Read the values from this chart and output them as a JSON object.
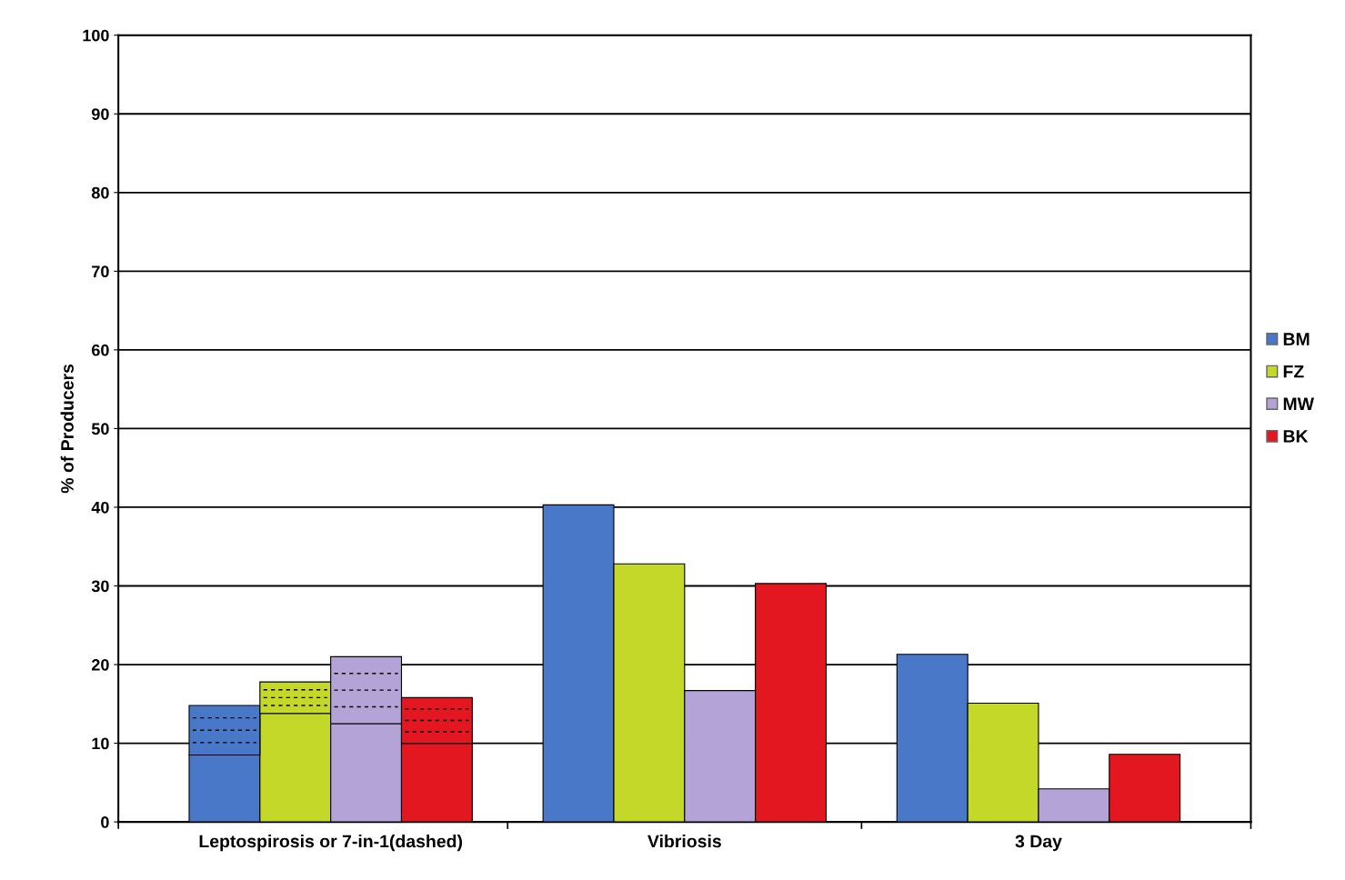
{
  "chart_data": {
    "type": "bar",
    "ylabel": "% of Producers",
    "categories": [
      null,
      null,
      null,
      null,
      null,
      null,
      null,
      null,
      null,
      null,
      null,
      null,
      null,
      null,
      null,
      null
    ],
    "annotations": [
      "Leptospirosis or 7-in-1(dashed)",
      "Vibriosis",
      "3 Day"
    ],
    "stacked": true,
    "ylim": [
      0,
      100
    ],
    "yticks": [
      0,
      10,
      20,
      30,
      40,
      50,
      60,
      70,
      80,
      90,
      100
    ],
    "grid": "y",
    "legend": "right",
    "tick_labels": "y",
    "series": [
      {
        "name": "BM",
        "color": "#4a78c8",
        "values": [
          null,
          8.5,
          null,
          null,
          null,
          null,
          40.3,
          null,
          null,
          null,
          null,
          21.3,
          null,
          null,
          null,
          null
        ]
      },
      {
        "name": "FZ",
        "color": "#c4d82a",
        "values": [
          null,
          null,
          13.8,
          null,
          null,
          null,
          null,
          32.8,
          null,
          null,
          null,
          null,
          15.1,
          null,
          null,
          null
        ]
      },
      {
        "name": "MW",
        "color": "#b3a3d6",
        "values": [
          null,
          null,
          null,
          12.5,
          null,
          null,
          null,
          null,
          16.7,
          null,
          null,
          null,
          null,
          4.2,
          null,
          null
        ]
      },
      {
        "name": "BK",
        "color": "#e3171f",
        "values": [
          null,
          null,
          null,
          null,
          10,
          null,
          null,
          null,
          null,
          30.3,
          null,
          null,
          null,
          null,
          8.6,
          null
        ]
      },
      {
        "color": "#4a78c8",
        "values": [
          null,
          6.3,
          null,
          null,
          null,
          null,
          null,
          null,
          null,
          null,
          null,
          null,
          null,
          null,
          null,
          null
        ],
        "line_style": "dashed"
      },
      {
        "color": "#c4d82a",
        "values": [
          null,
          null,
          4,
          null,
          null,
          null,
          null,
          null,
          null,
          null,
          null,
          null,
          null,
          null,
          null,
          null
        ],
        "line_style": "dashed"
      },
      {
        "color": "#b3a3d6",
        "values": [
          null,
          null,
          null,
          8.5,
          null,
          null,
          null,
          null,
          null,
          null,
          null,
          null,
          null,
          null,
          null,
          null
        ],
        "line_style": "dashed"
      },
      {
        "color": "#e3171f",
        "values": [
          null,
          null,
          null,
          null,
          5.8,
          null,
          null,
          null,
          null,
          null,
          null,
          null,
          null,
          null,
          null,
          null
        ],
        "line_style": "dashed"
      }
    ]
  }
}
